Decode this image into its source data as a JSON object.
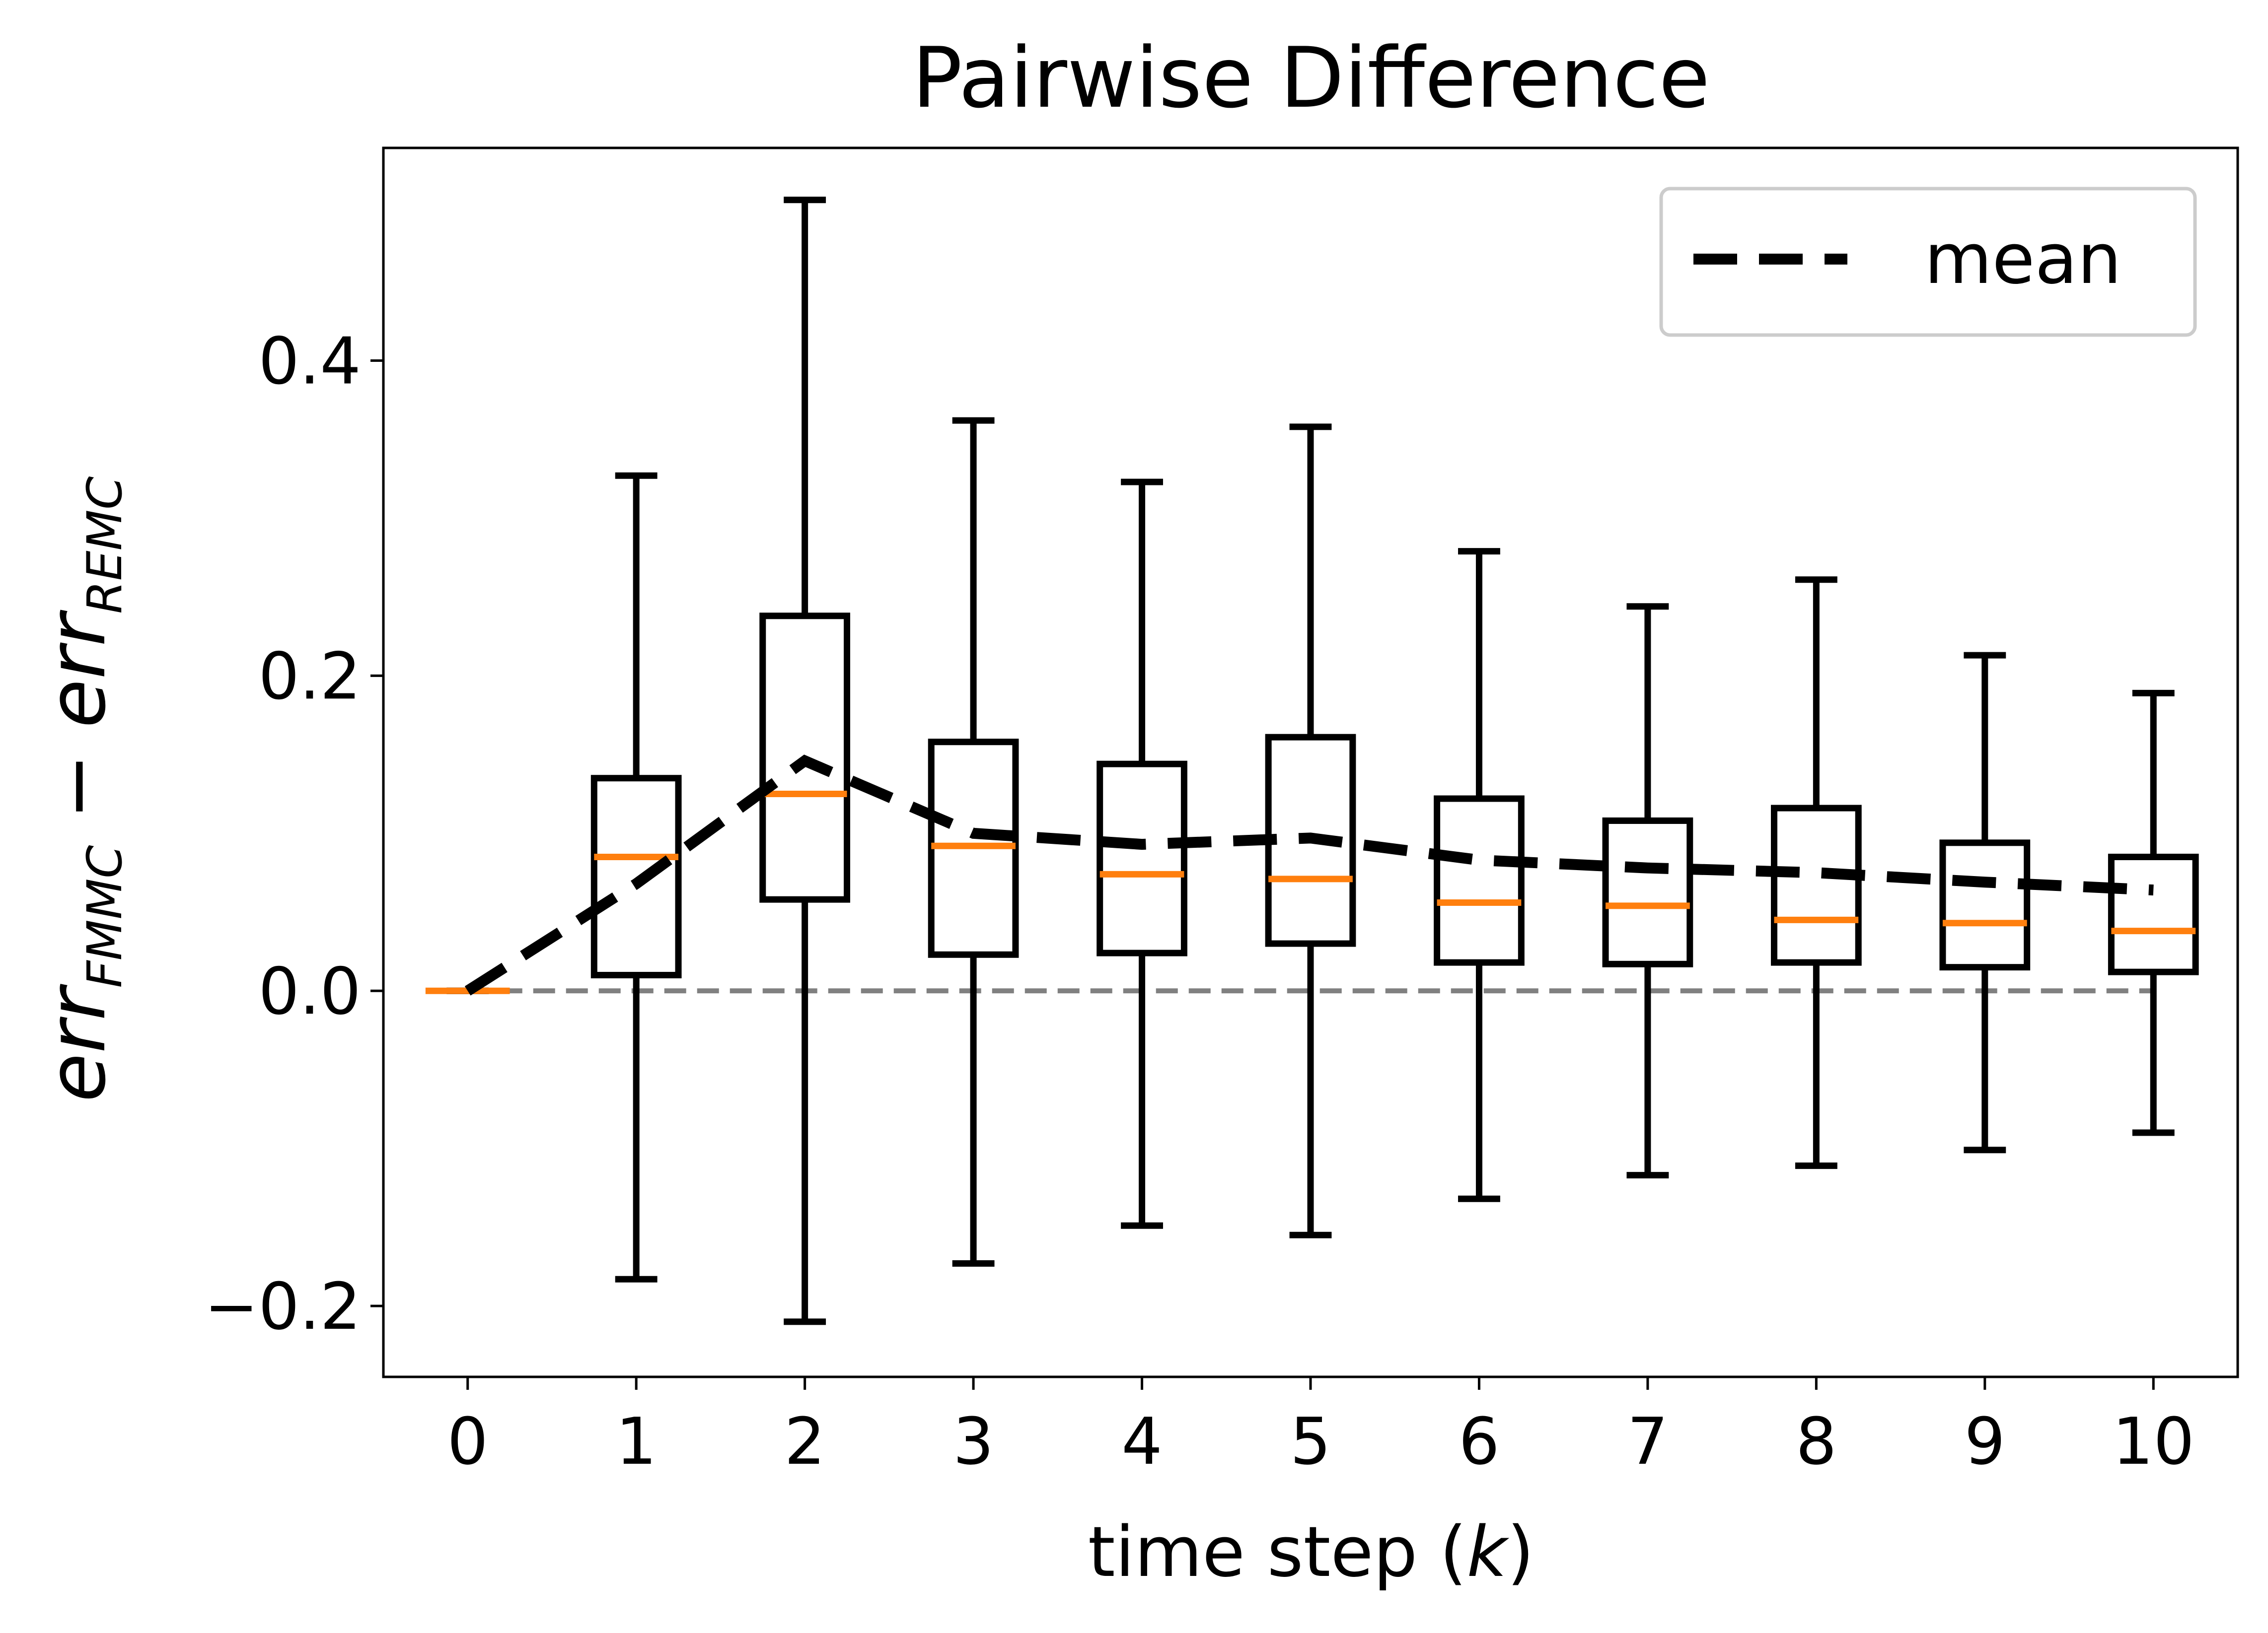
{
  "chart_data": {
    "type": "box",
    "title": "Pairwise Difference",
    "xlabel": "time step (k)",
    "xlabel_parts": {
      "prefix": "time step (",
      "var": "k",
      "suffix": ")"
    },
    "ylabel": "err_FMMC − err_REMC",
    "ylabel_parts": {
      "term1": "err",
      "sub1": "FMMC",
      "minus": " − ",
      "term2": "err",
      "sub2": "REMC"
    },
    "categories": [
      "0",
      "1",
      "2",
      "3",
      "4",
      "5",
      "6",
      "7",
      "8",
      "9",
      "10"
    ],
    "yticks": [
      {
        "value": -0.2,
        "label": "−0.2"
      },
      {
        "value": 0.0,
        "label": "0.0"
      },
      {
        "value": 0.2,
        "label": "0.2"
      },
      {
        "value": 0.4,
        "label": "0.4"
      }
    ],
    "ylim": [
      -0.245,
      0.535
    ],
    "xlim": [
      -0.5,
      10.5
    ],
    "boxes": [
      {
        "k": 0,
        "whislo": 0.0,
        "q1": 0.0,
        "med": 0.0,
        "q3": 0.0,
        "whishi": 0.0
      },
      {
        "k": 1,
        "whislo": -0.183,
        "q1": 0.01,
        "med": 0.085,
        "q3": 0.135,
        "whishi": 0.327
      },
      {
        "k": 2,
        "whislo": -0.21,
        "q1": 0.058,
        "med": 0.125,
        "q3": 0.238,
        "whishi": 0.502
      },
      {
        "k": 3,
        "whislo": -0.173,
        "q1": 0.023,
        "med": 0.092,
        "q3": 0.158,
        "whishi": 0.362
      },
      {
        "k": 4,
        "whislo": -0.149,
        "q1": 0.024,
        "med": 0.074,
        "q3": 0.144,
        "whishi": 0.323
      },
      {
        "k": 5,
        "whislo": -0.155,
        "q1": 0.03,
        "med": 0.071,
        "q3": 0.161,
        "whishi": 0.358
      },
      {
        "k": 6,
        "whislo": -0.132,
        "q1": 0.018,
        "med": 0.056,
        "q3": 0.122,
        "whishi": 0.279
      },
      {
        "k": 7,
        "whislo": -0.117,
        "q1": 0.017,
        "med": 0.054,
        "q3": 0.108,
        "whishi": 0.244
      },
      {
        "k": 8,
        "whislo": -0.111,
        "q1": 0.018,
        "med": 0.045,
        "q3": 0.116,
        "whishi": 0.261
      },
      {
        "k": 9,
        "whislo": -0.101,
        "q1": 0.015,
        "med": 0.043,
        "q3": 0.094,
        "whishi": 0.213
      },
      {
        "k": 10,
        "whislo": -0.09,
        "q1": 0.012,
        "med": 0.038,
        "q3": 0.085,
        "whishi": 0.189
      }
    ],
    "mean": {
      "label": "mean",
      "x": [
        0,
        1,
        2,
        3,
        4,
        5,
        6,
        7,
        8,
        9,
        10
      ],
      "y": [
        0.0,
        0.068,
        0.146,
        0.1,
        0.093,
        0.097,
        0.083,
        0.078,
        0.075,
        0.069,
        0.064
      ]
    },
    "zero_line": {
      "y": 0.0
    },
    "legend": {
      "position": "top-right",
      "entries": [
        "mean"
      ]
    },
    "colors": {
      "box": "#000000",
      "median": "#ff7f0e",
      "mean": "#000000",
      "zero_line": "#808080",
      "legend_border": "#cccccc"
    }
  }
}
